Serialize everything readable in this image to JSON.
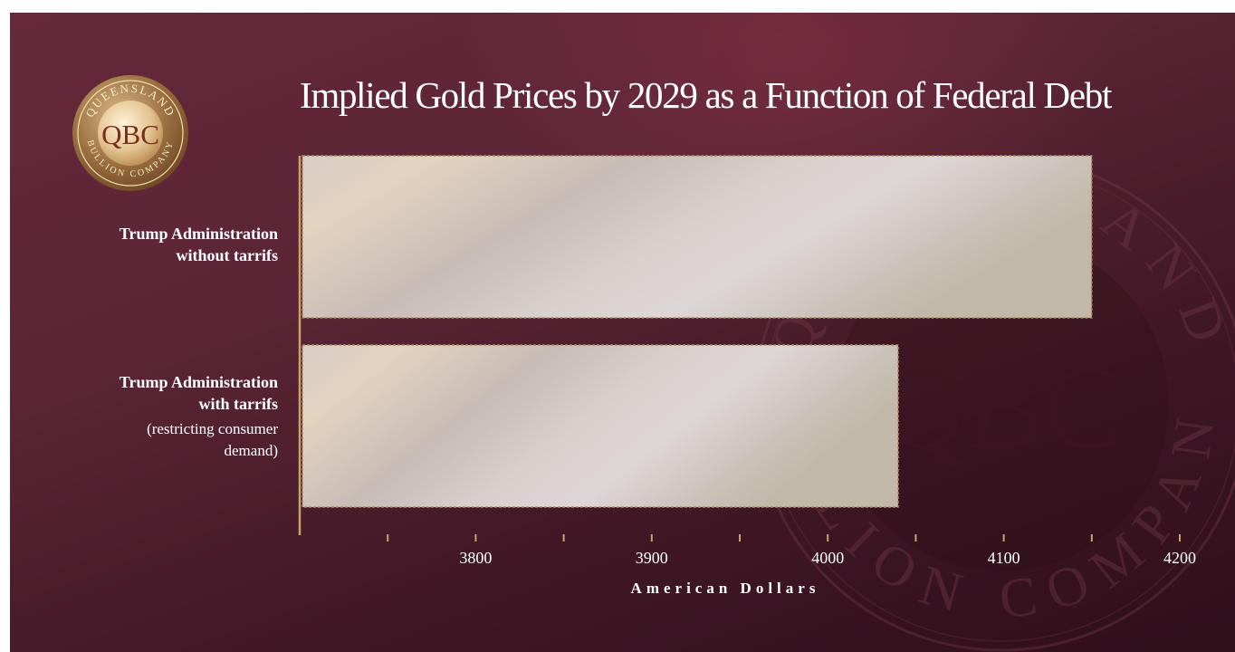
{
  "brand": {
    "logo_center": "QBC",
    "logo_ring_top": "QUEENSLAND",
    "logo_ring_bottom": "BULLION COMPANY"
  },
  "colors": {
    "background": "#5b2535",
    "gold": "#c9a36b",
    "bar_fill": "#d4ccc6"
  },
  "chart_data": {
    "type": "bar",
    "orientation": "horizontal",
    "title": "Implied Gold Prices by 2029 as a Function of Federal Debt",
    "xlabel": "American Dollars",
    "ylabel": "",
    "xlim": [
      3700,
      4200
    ],
    "xticks": [
      3800,
      3900,
      4000,
      4100,
      4200
    ],
    "xticks_minor": [
      3750,
      3850,
      3950,
      4050,
      4150
    ],
    "grid": false,
    "categories": [
      {
        "line1": "Trump Administration",
        "line2": "without tarrifs",
        "note1": "",
        "note2": ""
      },
      {
        "line1": "Trump Administration",
        "line2": "with tarrifs",
        "note1": "(restricting consumer",
        "note2": "demand)"
      }
    ],
    "values": [
      4150,
      4040
    ]
  }
}
